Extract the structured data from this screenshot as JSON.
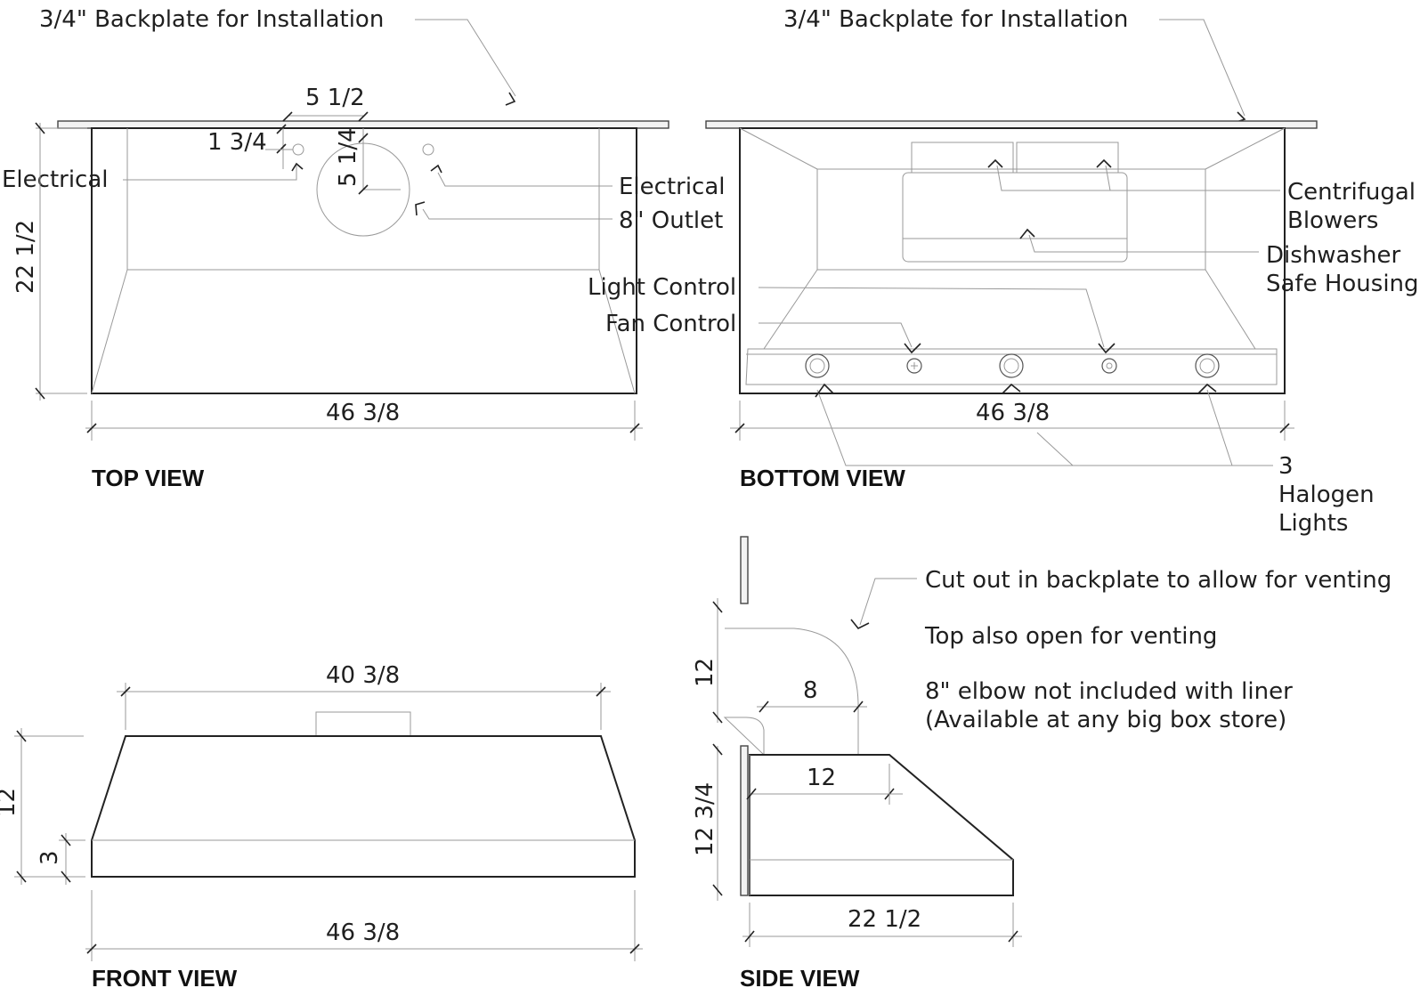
{
  "top_view": {
    "backplate_label": "3/4\" Backplate for Installation",
    "view_title": "TOP VIEW",
    "width_dim": "46 3/8",
    "depth_dim": "22 1/2",
    "outlet_offset_dim": "5 1/2",
    "outlet_depth_dim": "5 1/4",
    "electrical_offset_dim": "1 3/4",
    "electrical_left_label": "Electrical",
    "electrical_right_label": "Electrical",
    "outlet_label": "8\" Outlet"
  },
  "bottom_view": {
    "backplate_label": "3/4\" Backplate for Installation",
    "view_title": "BOTTOM VIEW",
    "width_dim": "46 3/8",
    "blowers_label_line1": "Centrifugal",
    "blowers_label_line2": "Blowers",
    "housing_label_line1": "Dishwasher",
    "housing_label_line2": "Safe Housing",
    "light_control_label": "Light Control",
    "fan_control_label": "Fan Control",
    "lights_label_line1": "3",
    "lights_label_line2": "Halogen",
    "lights_label_line3": "Lights"
  },
  "front_view": {
    "view_title": "FRONT VIEW",
    "top_width_dim": "40 3/8",
    "bottom_width_dim": "46 3/8",
    "height_dim": "12",
    "band_dim": "3"
  },
  "side_view": {
    "view_title": "SIDE VIEW",
    "elbow_height_dim": "12",
    "elbow_width_dim": "8",
    "top_depth_dim": "12",
    "height_dim": "12 3/4",
    "depth_dim": "22 1/2",
    "note_1": "Cut out in backplate to allow for venting",
    "note_2": "Top also open for venting",
    "note_3_line1": "8\" elbow not included with liner",
    "note_3_line2": "(Available at any big box store)"
  }
}
